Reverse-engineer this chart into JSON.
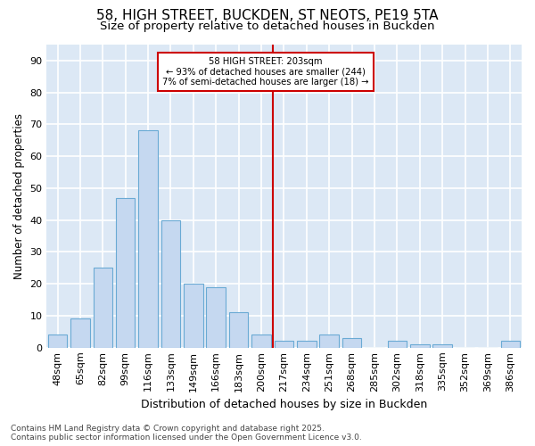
{
  "title1": "58, HIGH STREET, BUCKDEN, ST NEOTS, PE19 5TA",
  "title2": "Size of property relative to detached houses in Buckden",
  "xlabel": "Distribution of detached houses by size in Buckden",
  "ylabel": "Number of detached properties",
  "categories": [
    "48sqm",
    "65sqm",
    "82sqm",
    "99sqm",
    "116sqm",
    "133sqm",
    "149sqm",
    "166sqm",
    "183sqm",
    "200sqm",
    "217sqm",
    "234sqm",
    "251sqm",
    "268sqm",
    "285sqm",
    "302sqm",
    "318sqm",
    "335sqm",
    "352sqm",
    "369sqm",
    "386sqm"
  ],
  "values": [
    4,
    9,
    25,
    47,
    68,
    40,
    20,
    19,
    11,
    4,
    2,
    2,
    4,
    3,
    0,
    2,
    1,
    1,
    0,
    0,
    2
  ],
  "bar_color": "#c5d8f0",
  "bar_edgecolor": "#6aaad4",
  "vline_color": "#cc0000",
  "annotation_title": "58 HIGH STREET: 203sqm",
  "annotation_line1": "← 93% of detached houses are smaller (244)",
  "annotation_line2": "7% of semi-detached houses are larger (18) →",
  "annotation_box_color": "#cc0000",
  "annotation_fill": "#ffffff",
  "ylim": [
    0,
    95
  ],
  "yticks": [
    0,
    10,
    20,
    30,
    40,
    50,
    60,
    70,
    80,
    90
  ],
  "footer_line1": "Contains HM Land Registry data © Crown copyright and database right 2025.",
  "footer_line2": "Contains public sector information licensed under the Open Government Licence v3.0.",
  "fig_bg_color": "#ffffff",
  "plot_bg_color": "#dce8f5",
  "grid_color": "#ffffff",
  "title_fontsize": 11,
  "subtitle_fontsize": 9.5,
  "ylabel_fontsize": 8.5,
  "xlabel_fontsize": 9,
  "tick_fontsize": 8,
  "footer_fontsize": 6.5
}
